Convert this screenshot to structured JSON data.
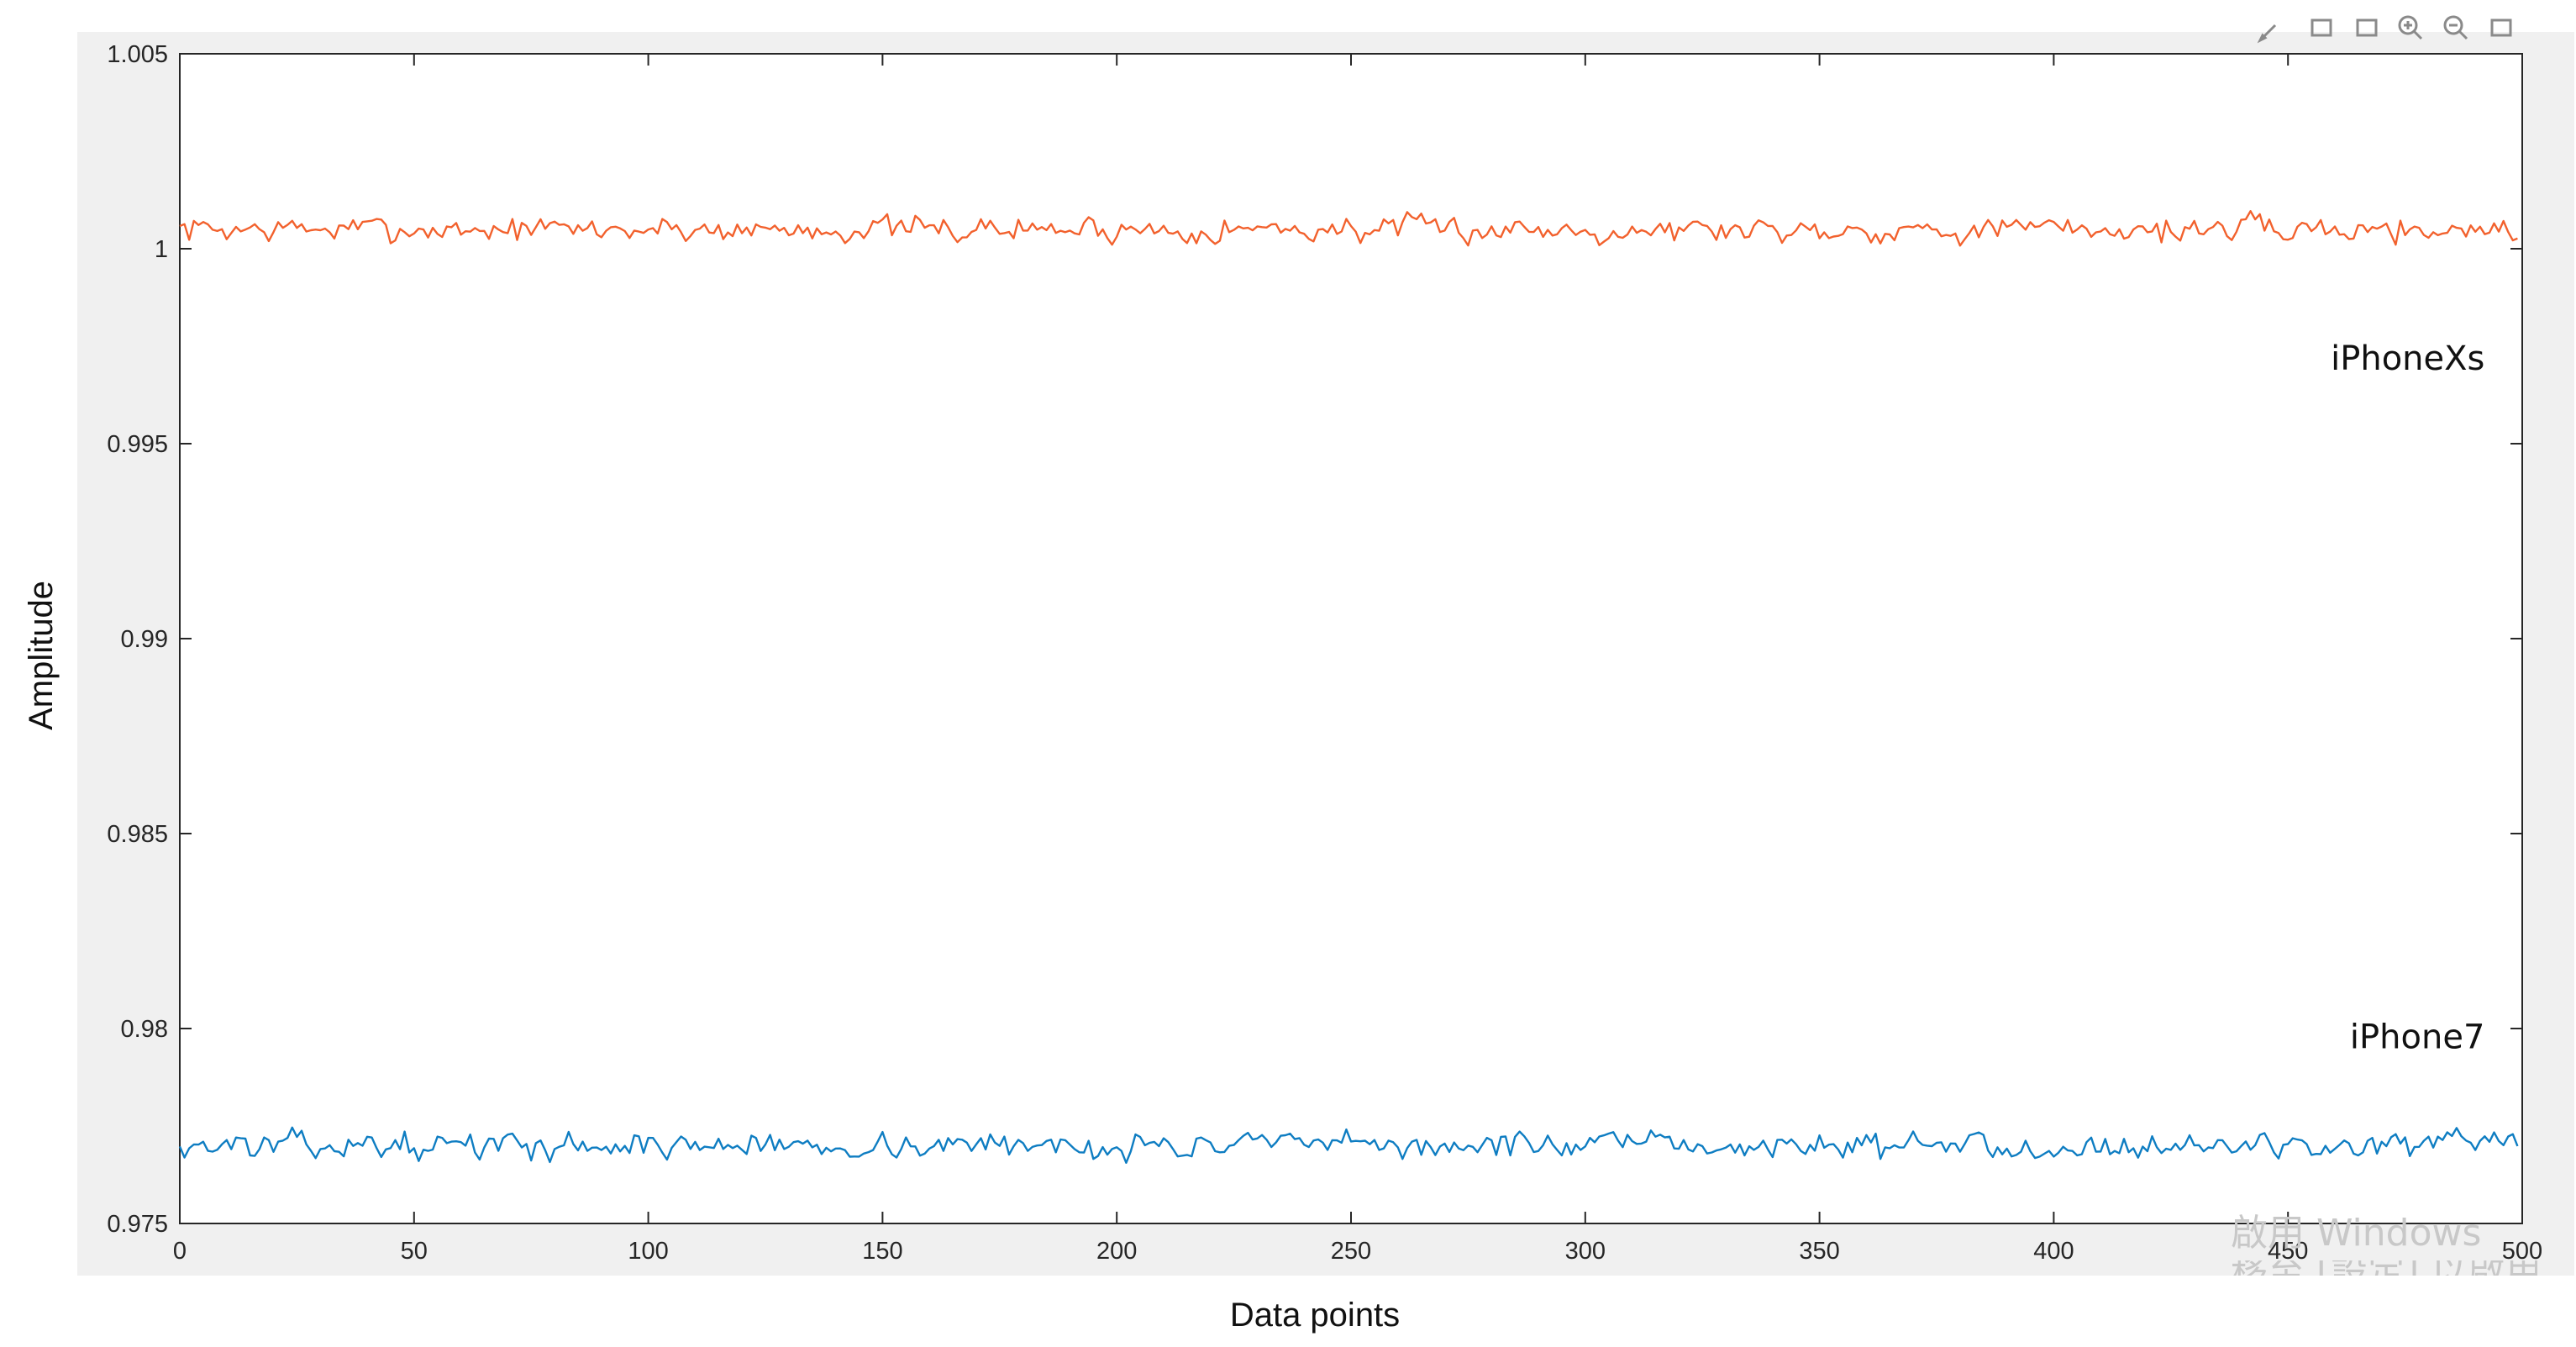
{
  "chart_data": {
    "type": "line",
    "title": "",
    "xlabel": "Data points",
    "ylabel": "Amplitude",
    "xlim": [
      0,
      500
    ],
    "ylim": [
      0.975,
      1.005
    ],
    "x_ticks": [
      0,
      50,
      100,
      150,
      200,
      250,
      300,
      350,
      400,
      450,
      500
    ],
    "y_ticks": [
      "0.975",
      "0.98",
      "0.985",
      "0.99",
      "0.995",
      "1",
      "1.005"
    ],
    "grid": false,
    "legend": "none",
    "series": [
      {
        "name": "iPhoneXs",
        "color": "#f2612d",
        "num_points": 500,
        "mean": 1.0005,
        "noise_amplitude": 0.00045,
        "min": 0.9992,
        "max": 1.0019,
        "seed": 7
      },
      {
        "name": "iPhone7",
        "color": "#0e7dc2",
        "num_points": 500,
        "mean": 0.977,
        "noise_amplitude": 0.00045,
        "min": 0.9756,
        "max": 0.9784,
        "seed": 13
      }
    ],
    "annotations": [
      {
        "text": "iPhoneXs",
        "x": 492,
        "y": 0.9972
      },
      {
        "text": "iPhone7",
        "x": 492,
        "y": 0.9798
      }
    ]
  },
  "watermark": {
    "line1": "啟用 Windows",
    "line2": "移至 [設定] 以啟用 Windows"
  },
  "toolbar": {
    "icons": [
      "brush-icon",
      "window-icon",
      "window-icon",
      "zoom-in-icon",
      "zoom-out-icon",
      "window-icon"
    ]
  }
}
